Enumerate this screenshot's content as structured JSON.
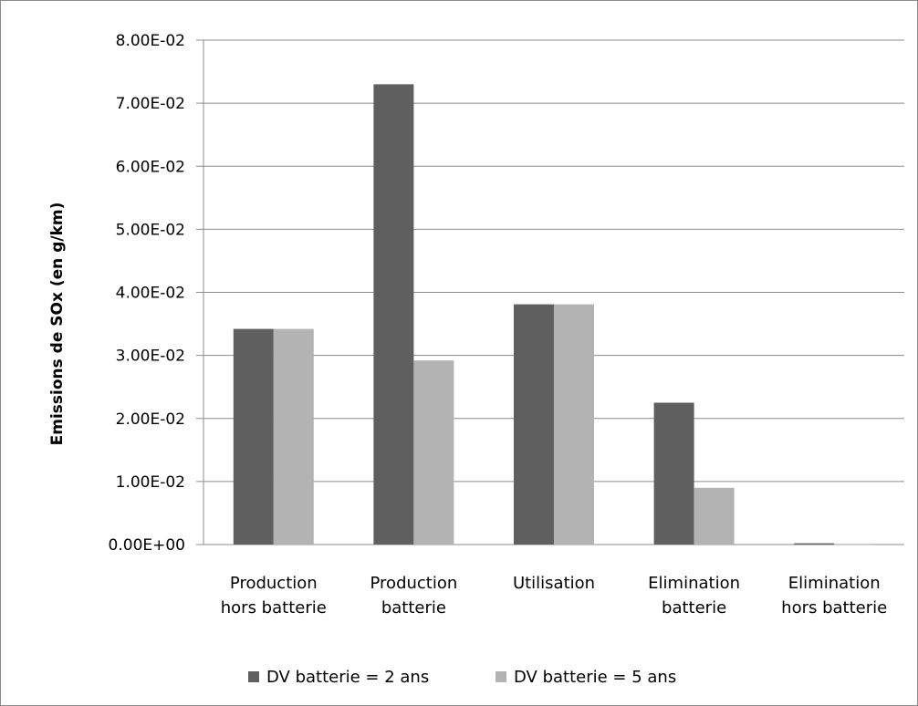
{
  "chart_data": {
    "type": "bar",
    "ylabel": "Emissions de SOx (en g/km)",
    "categories": [
      [
        "Production",
        "hors batterie"
      ],
      [
        "Production",
        "batterie"
      ],
      [
        "Utilisation"
      ],
      [
        "Elimination",
        "batterie"
      ],
      [
        "Elimination",
        "hors batterie"
      ]
    ],
    "series": [
      {
        "name": "DV batterie = 2 ans",
        "color": "#5f5f5f",
        "values": [
          0.0342,
          0.073,
          0.0381,
          0.0225,
          0.0002
        ]
      },
      {
        "name": "DV batterie = 5 ans",
        "color": "#b3b3b3",
        "values": [
          0.0342,
          0.0292,
          0.0381,
          0.009,
          0.0001
        ]
      }
    ],
    "ylim": [
      0,
      0.08
    ],
    "yticks": [
      "0.00E+00",
      "1.00E-02",
      "2.00E-02",
      "3.00E-02",
      "4.00E-02",
      "5.00E-02",
      "6.00E-02",
      "7.00E-02",
      "8.00E-02"
    ],
    "grid": true,
    "legend_position": "bottom"
  }
}
